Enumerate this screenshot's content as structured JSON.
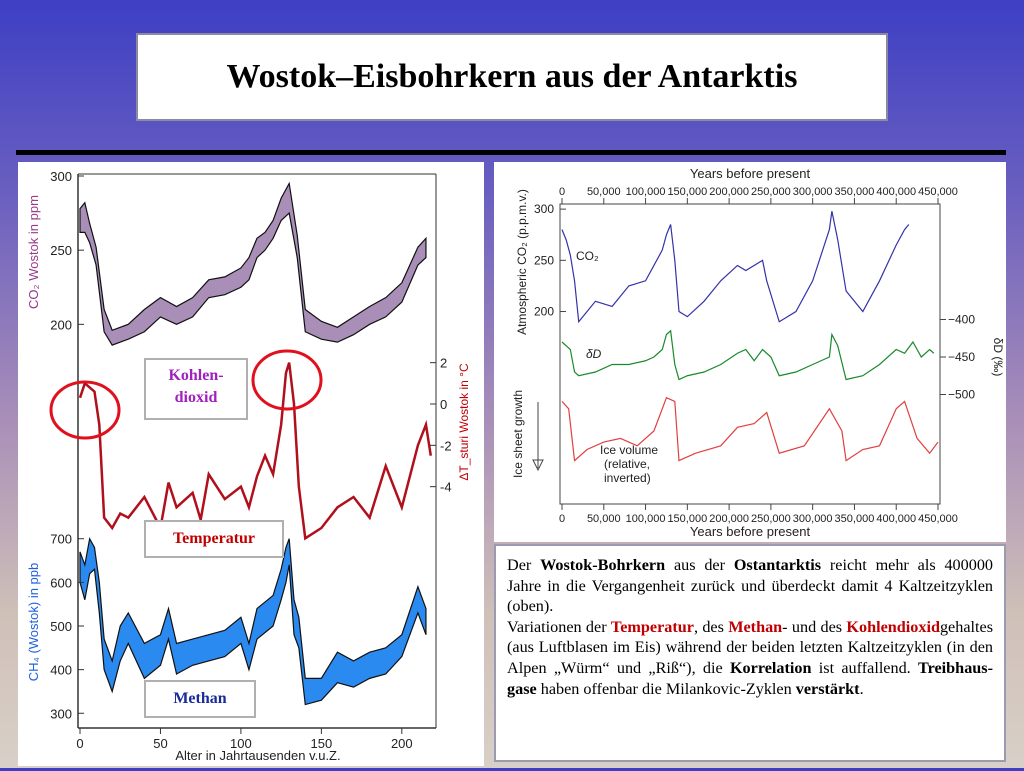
{
  "title": "Wostok–Eisbohrkern aus der Antarktis",
  "left_chart": {
    "co2_axis_label": "CO₂ Wostok in ppm",
    "temp_axis_label": "ΔT_sturi Wostok in °C",
    "ch4_axis_label": "CH₄ (Wostok) in ppb",
    "x_axis_label": "Alter in Jahrtausenden v.u.Z.",
    "x_ticks": [
      "0",
      "50",
      "100",
      "150",
      "200"
    ],
    "co2_ticks": [
      "300",
      "250",
      "200"
    ],
    "temp_ticks": [
      "2",
      "0",
      "-2",
      "-4"
    ],
    "ch4_ticks": [
      "700",
      "600",
      "500",
      "400",
      "300"
    ],
    "labels": {
      "co2": "Kohlen-\ndioxid",
      "temperature": "Temperatur",
      "methane": "Methan"
    }
  },
  "right_chart": {
    "top_axis_title": "Years before present",
    "bottom_axis_title": "Years before present",
    "x_ticks": [
      "0",
      "50,000",
      "100,000",
      "150,000",
      "200,000",
      "250,000",
      "300,000",
      "350,000",
      "400,000",
      "450,000"
    ],
    "co2_ticks": [
      "300",
      "250",
      "200"
    ],
    "co2_axis_label": "Atmospheric CO₂ (p.p.m.v.)",
    "dd_ticks": [
      "−400",
      "−450",
      "−500"
    ],
    "dd_axis_label": "δD (‰)",
    "ice_axis_label": "Ice sheet growth",
    "co2_label": "CO₂",
    "dd_label": "δD",
    "ice_label": [
      "Ice volume",
      "(relative,",
      "inverted)"
    ]
  },
  "text": {
    "p1": [
      {
        "t": "Der ",
        "s": ""
      },
      {
        "t": "Wostok-Bohrkern",
        "s": "b"
      },
      {
        "t": " aus der ",
        "s": ""
      },
      {
        "t": "Ostantarktis",
        "s": "b"
      },
      {
        "t": " reicht mehr als 400000 Jahre in die Vergangenheit zurück und überdeckt damit 4 Kaltzeitzyklen (oben).",
        "s": ""
      }
    ],
    "p2": [
      {
        "t": "Variationen der ",
        "s": ""
      },
      {
        "t": "Temperatur",
        "s": "r"
      },
      {
        "t": ", des ",
        "s": ""
      },
      {
        "t": "Methan",
        "s": "r"
      },
      {
        "t": "- und des ",
        "s": ""
      },
      {
        "t": "Kohlendioxid",
        "s": "r"
      },
      {
        "t": "gehaltes (aus Luftblasen im Eis) während der beiden letzten Kaltzeitzyklen (in den Alpen „Würm“ und „Riß“), die ",
        "s": ""
      },
      {
        "t": "Korrelation",
        "s": "b"
      },
      {
        "t": " ist auffallend. ",
        "s": ""
      },
      {
        "t": "Treibhaus-gase",
        "s": "b"
      },
      {
        "t": " haben offenbar die Milankovic-Zyklen ",
        "s": ""
      },
      {
        "t": "verstärkt",
        "s": "b"
      },
      {
        "t": ".",
        "s": ""
      }
    ]
  },
  "colors": {
    "co2_band": "#a98eb8",
    "temperature": "#b0101c",
    "methane": "#2b8af0",
    "rc_co2": "#3333aa",
    "rc_dd": "#1a8a2a",
    "rc_ice": "#e04040",
    "circle": "#e0101c"
  },
  "chart_data": [
    {
      "type": "area",
      "x_label": "Alter in Jahrtausenden v.u.Z.",
      "xlim": [
        0,
        220
      ],
      "series": [
        {
          "name": "CO₂ Wostok in ppm",
          "ylim": [
            180,
            300
          ],
          "x": [
            0,
            3,
            6,
            10,
            15,
            20,
            30,
            40,
            50,
            60,
            70,
            80,
            90,
            100,
            105,
            110,
            115,
            120,
            125,
            130,
            135,
            140,
            150,
            160,
            170,
            180,
            190,
            200,
            210,
            215
          ],
          "low": [
            262,
            262,
            255,
            240,
            195,
            186,
            190,
            195,
            205,
            200,
            205,
            218,
            220,
            225,
            230,
            245,
            250,
            258,
            270,
            275,
            245,
            195,
            190,
            188,
            193,
            200,
            205,
            215,
            240,
            245
          ],
          "high": [
            278,
            282,
            268,
            252,
            210,
            196,
            200,
            210,
            218,
            212,
            218,
            230,
            232,
            238,
            245,
            258,
            262,
            270,
            285,
            295,
            260,
            210,
            202,
            198,
            205,
            212,
            218,
            228,
            252,
            258
          ]
        },
        {
          "name": "ΔT Wostok in °C",
          "ylim": [
            -6,
            3
          ],
          "x": [
            0,
            3,
            6,
            9,
            12,
            15,
            20,
            25,
            30,
            40,
            50,
            55,
            60,
            70,
            75,
            80,
            90,
            100,
            105,
            110,
            115,
            120,
            125,
            128,
            130,
            133,
            136,
            140,
            150,
            160,
            170,
            180,
            190,
            200,
            210,
            215,
            218
          ],
          "y": [
            0.3,
            1.0,
            0.8,
            0.6,
            -1,
            -5.5,
            -6,
            -5.3,
            -5.5,
            -4.5,
            -6,
            -3.8,
            -5,
            -4.3,
            -5.6,
            -3.4,
            -4.6,
            -4,
            -5,
            -3.5,
            -2.5,
            -3.4,
            -1,
            1.5,
            2,
            0,
            -4,
            -6.5,
            -6,
            -5,
            -4.5,
            -5.5,
            -3,
            -5,
            -2,
            -1,
            -2.5
          ]
        },
        {
          "name": "CH₄ (Wostok) in ppb",
          "ylim": [
            280,
            720
          ],
          "x": [
            0,
            3,
            6,
            9,
            12,
            15,
            20,
            25,
            30,
            40,
            50,
            55,
            60,
            70,
            80,
            90,
            100,
            105,
            110,
            120,
            125,
            128,
            130,
            133,
            136,
            140,
            150,
            160,
            170,
            180,
            190,
            200,
            210,
            215
          ],
          "low": [
            600,
            560,
            620,
            630,
            530,
            400,
            350,
            420,
            460,
            380,
            410,
            470,
            390,
            410,
            420,
            430,
            460,
            400,
            470,
            500,
            560,
            600,
            640,
            480,
            450,
            320,
            330,
            370,
            360,
            380,
            390,
            430,
            530,
            480
          ],
          "high": [
            670,
            640,
            700,
            680,
            600,
            470,
            420,
            500,
            530,
            460,
            480,
            540,
            460,
            470,
            480,
            490,
            520,
            460,
            540,
            570,
            630,
            680,
            700,
            560,
            520,
            380,
            380,
            440,
            420,
            440,
            450,
            480,
            590,
            540
          ]
        }
      ]
    },
    {
      "type": "line",
      "x_label": "Years before present",
      "xlim": [
        0,
        450000
      ],
      "series": [
        {
          "name": "CO₂",
          "ylim": [
            180,
            305
          ],
          "x": [
            0,
            5000,
            10000,
            15000,
            20000,
            30000,
            40000,
            60000,
            80000,
            100000,
            110000,
            120000,
            125000,
            130000,
            135000,
            140000,
            150000,
            170000,
            190000,
            210000,
            220000,
            240000,
            245000,
            260000,
            280000,
            300000,
            310000,
            320000,
            323000,
            330000,
            340000,
            360000,
            380000,
            400000,
            410000,
            415000
          ],
          "y": [
            280,
            270,
            255,
            230,
            190,
            200,
            210,
            205,
            225,
            230,
            245,
            260,
            275,
            285,
            250,
            200,
            195,
            210,
            230,
            245,
            240,
            250,
            230,
            190,
            200,
            230,
            255,
            280,
            298,
            270,
            220,
            200,
            230,
            265,
            280,
            285
          ]
        },
        {
          "name": "δD",
          "ylim": [
            -510,
            -390
          ],
          "x": [
            0,
            10000,
            15000,
            20000,
            40000,
            60000,
            80000,
            100000,
            110000,
            120000,
            125000,
            130000,
            135000,
            140000,
            150000,
            170000,
            190000,
            210000,
            220000,
            230000,
            240000,
            250000,
            260000,
            280000,
            300000,
            320000,
            323000,
            330000,
            340000,
            360000,
            380000,
            400000,
            410000,
            420000,
            430000,
            440000,
            445000
          ],
          "y": [
            -430,
            -440,
            -470,
            -475,
            -470,
            -460,
            -460,
            -455,
            -450,
            -440,
            -420,
            -415,
            -460,
            -480,
            -475,
            -470,
            -460,
            -445,
            -440,
            -455,
            -440,
            -450,
            -475,
            -470,
            -460,
            -450,
            -420,
            -435,
            -480,
            -475,
            -460,
            -440,
            -445,
            -430,
            -450,
            -440,
            -445
          ]
        }
      ]
    }
  ]
}
